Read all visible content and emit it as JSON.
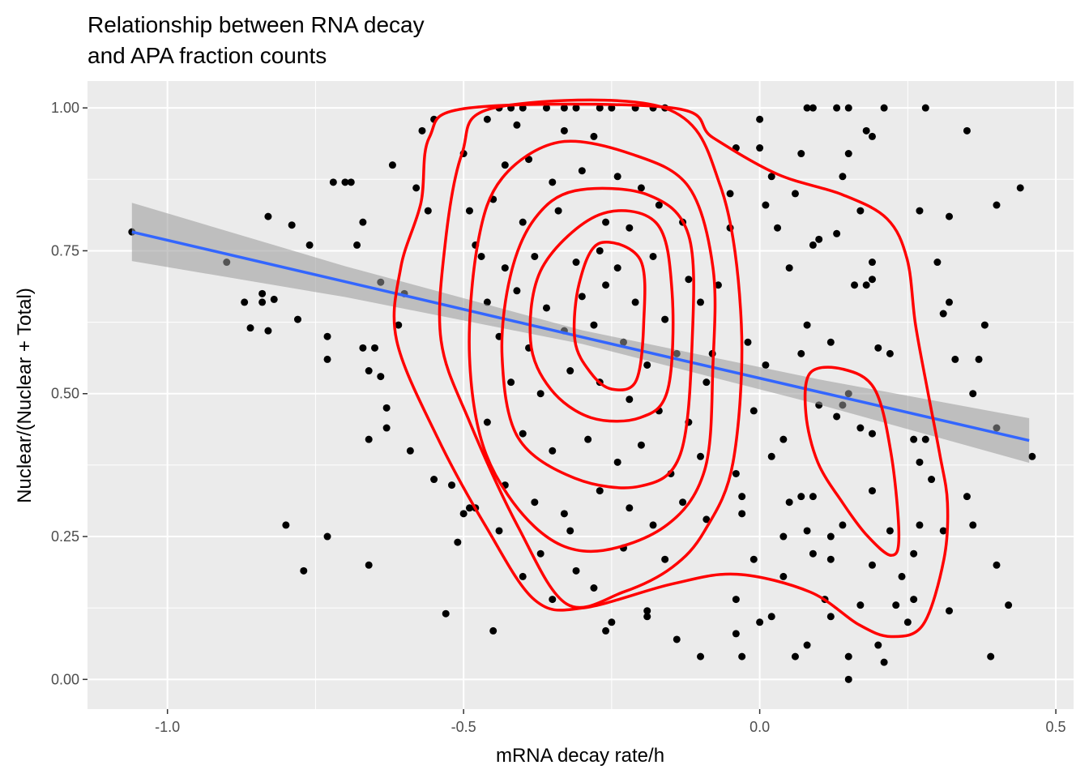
{
  "chart_data": {
    "type": "scatter",
    "title": [
      "Relationship between RNA decay",
      "and APA fraction counts"
    ],
    "x_label": "mRNA decay rate/h",
    "y_label": "Nuclear/(Nuclear + Total)",
    "xlim": [
      -1.135,
      0.53
    ],
    "ylim": [
      -0.052,
      1.047
    ],
    "xticks": [
      {
        "value": -1.0,
        "label": "-1.0"
      },
      {
        "value": -0.5,
        "label": "-0.5"
      },
      {
        "value": 0.0,
        "label": "0.0"
      },
      {
        "value": 0.5,
        "label": "0.5"
      }
    ],
    "yticks": [
      {
        "value": 0.0,
        "label": "0.00"
      },
      {
        "value": 0.25,
        "label": "0.25"
      },
      {
        "value": 0.5,
        "label": "0.50"
      },
      {
        "value": 0.75,
        "label": "0.75"
      },
      {
        "value": 1.0,
        "label": "1.00"
      }
    ],
    "x_minor_grid": [
      -0.75,
      -0.25,
      0.25
    ],
    "y_minor_grid": [
      0.125,
      0.375,
      0.625,
      0.875
    ],
    "grid": true,
    "point_color": "#000000",
    "series": [
      {
        "x": [
          -1.06,
          -0.9,
          -0.87,
          -0.86,
          -0.83,
          -0.83,
          -0.84,
          -0.84,
          -0.82,
          -0.79,
          -0.78,
          -0.76,
          -0.72,
          -0.7,
          -0.73,
          -0.73,
          -0.68,
          -0.67,
          -0.67,
          -0.66,
          -0.69,
          -0.62,
          -0.6,
          -0.64,
          -0.66,
          -0.64,
          -0.63,
          -0.65,
          -0.61,
          -0.63,
          -0.66,
          -0.73,
          -0.8,
          -0.77,
          -0.59,
          -0.58,
          -0.56,
          -0.55,
          -0.57,
          -0.55,
          -0.53,
          -0.52,
          -0.51,
          -0.45,
          -0.5,
          -0.48,
          -0.47,
          -0.49,
          -0.5,
          -0.49,
          -0.46,
          -0.42,
          -0.44,
          -0.4,
          -0.36,
          -0.33,
          -0.31,
          -0.27,
          -0.25,
          -0.21,
          -0.18,
          -0.16,
          -0.41,
          -0.33,
          -0.28,
          -0.43,
          -0.39,
          -0.35,
          -0.3,
          -0.24,
          -0.2,
          -0.17,
          -0.45,
          -0.4,
          -0.34,
          -0.26,
          -0.22,
          -0.13,
          -0.48,
          -0.43,
          -0.38,
          -0.31,
          -0.27,
          -0.24,
          -0.18,
          -0.12,
          -0.46,
          -0.41,
          -0.36,
          -0.3,
          -0.26,
          -0.21,
          -0.16,
          -0.1,
          -0.44,
          -0.39,
          -0.33,
          -0.28,
          -0.23,
          -0.19,
          -0.14,
          -0.09,
          -0.42,
          -0.37,
          -0.32,
          -0.27,
          -0.22,
          -0.17,
          -0.12,
          -0.46,
          -0.4,
          -0.35,
          -0.29,
          -0.24,
          -0.2,
          -0.15,
          -0.1,
          -0.43,
          -0.38,
          -0.33,
          -0.27,
          -0.22,
          -0.18,
          -0.13,
          -0.37,
          -0.31,
          -0.28,
          -0.23,
          -0.16,
          -0.35,
          -0.4,
          -0.44,
          0.0,
          0.08,
          0.09,
          0.13,
          0.15,
          0.21,
          0.28,
          0.18,
          0.19,
          0.35,
          0.0,
          0.07,
          0.15,
          0.14,
          0.02,
          0.06,
          0.17,
          0.27,
          0.32,
          0.4,
          0.44,
          0.09,
          0.1,
          0.05,
          0.13,
          0.19,
          0.3,
          0.19,
          0.18,
          0.16,
          0.08,
          0.07,
          0.12,
          0.2,
          0.22,
          0.31,
          0.32,
          0.38,
          0.33,
          0.37,
          0.4,
          0.46,
          0.36,
          0.13,
          0.17,
          0.19,
          0.26,
          0.28,
          0.02,
          0.04,
          0.1,
          0.15,
          0.14,
          0.27,
          0.29,
          0.19,
          0.05,
          0.07,
          0.09,
          0.04,
          0.08,
          0.14,
          0.22,
          0.27,
          0.31,
          0.35,
          0.36,
          0.12,
          0.09,
          0.12,
          0.19,
          0.26,
          0.24,
          0.26,
          0.25,
          0.23,
          0.32,
          0.42,
          0.11,
          0.17,
          0.12,
          0.02,
          0.0,
          0.06,
          0.08,
          0.15,
          0.2,
          0.21,
          0.15,
          0.39,
          0.4,
          0.04,
          -0.04,
          -0.04,
          -0.14,
          -0.03,
          -0.1,
          -0.01,
          -0.03,
          -0.04,
          -0.03,
          -0.01,
          0.01,
          -0.02,
          -0.08,
          -0.07,
          -0.05,
          -0.05,
          0.01,
          0.03,
          -0.04,
          -0.26,
          -0.25,
          -0.19,
          -0.19,
          -0.32,
          -0.09
        ],
        "values": [
          0.783,
          0.73,
          0.66,
          0.615,
          0.81,
          0.61,
          0.66,
          0.675,
          0.665,
          0.795,
          0.63,
          0.76,
          0.87,
          0.87,
          0.6,
          0.56,
          0.76,
          0.8,
          0.58,
          0.42,
          0.87,
          0.9,
          0.675,
          0.695,
          0.54,
          0.53,
          0.44,
          0.58,
          0.62,
          0.475,
          0.2,
          0.25,
          0.27,
          0.19,
          0.4,
          0.86,
          0.82,
          0.98,
          0.96,
          0.35,
          0.115,
          0.34,
          0.24,
          0.085,
          0.29,
          0.3,
          0.74,
          0.82,
          0.92,
          0.3,
          0.98,
          1.0,
          1.0,
          1.0,
          1.0,
          1.0,
          1.0,
          1.0,
          1.0,
          1.0,
          1.0,
          1.0,
          0.97,
          0.96,
          0.95,
          0.9,
          0.91,
          0.87,
          0.89,
          0.88,
          0.86,
          0.83,
          0.84,
          0.8,
          0.82,
          0.8,
          0.79,
          0.8,
          0.76,
          0.72,
          0.74,
          0.73,
          0.75,
          0.72,
          0.74,
          0.7,
          0.66,
          0.68,
          0.65,
          0.67,
          0.69,
          0.66,
          0.63,
          0.66,
          0.6,
          0.58,
          0.61,
          0.62,
          0.59,
          0.55,
          0.57,
          0.52,
          0.52,
          0.5,
          0.54,
          0.52,
          0.49,
          0.47,
          0.45,
          0.45,
          0.43,
          0.4,
          0.42,
          0.38,
          0.41,
          0.36,
          0.39,
          0.34,
          0.31,
          0.29,
          0.33,
          0.3,
          0.27,
          0.31,
          0.22,
          0.19,
          0.16,
          0.23,
          0.21,
          0.14,
          0.18,
          0.26,
          0.98,
          1.0,
          1.0,
          1.0,
          1.0,
          1.0,
          1.0,
          0.96,
          0.95,
          0.96,
          0.93,
          0.92,
          0.92,
          0.88,
          0.88,
          0.85,
          0.82,
          0.82,
          0.81,
          0.83,
          0.86,
          0.76,
          0.77,
          0.72,
          0.78,
          0.73,
          0.73,
          0.7,
          0.69,
          0.69,
          0.62,
          0.57,
          0.59,
          0.58,
          0.57,
          0.64,
          0.66,
          0.62,
          0.56,
          0.56,
          0.44,
          0.39,
          0.5,
          0.46,
          0.44,
          0.43,
          0.42,
          0.42,
          0.39,
          0.42,
          0.48,
          0.5,
          0.48,
          0.38,
          0.35,
          0.33,
          0.31,
          0.32,
          0.32,
          0.25,
          0.26,
          0.27,
          0.26,
          0.27,
          0.26,
          0.32,
          0.27,
          0.25,
          0.22,
          0.21,
          0.2,
          0.22,
          0.18,
          0.14,
          0.1,
          0.13,
          0.12,
          0.13,
          0.14,
          0.13,
          0.11,
          0.11,
          0.1,
          0.04,
          0.06,
          0.04,
          0.06,
          0.03,
          0.0,
          0.04,
          0.2,
          0.18,
          0.08,
          0.14,
          0.07,
          0.04,
          0.04,
          0.21,
          0.29,
          0.36,
          0.32,
          0.47,
          0.55,
          0.59,
          0.57,
          0.69,
          0.85,
          0.79,
          0.83,
          0.79,
          0.93,
          0.085,
          0.1,
          0.12,
          0.11,
          0.26,
          0.28
        ]
      }
    ],
    "fit": {
      "color": "#3366ff",
      "band_color": "#999999",
      "x": [
        -1.06,
        -0.7,
        -0.3,
        0.1,
        0.455
      ],
      "values": [
        0.783,
        0.696,
        0.599,
        0.503,
        0.418
      ],
      "lower": [
        0.732,
        0.669,
        0.587,
        0.481,
        0.379
      ],
      "upper": [
        0.834,
        0.723,
        0.611,
        0.525,
        0.457
      ]
    },
    "contour_color": "#ff0000",
    "contours": [
      {
        "x": [
          -0.271,
          -0.202,
          -0.196,
          -0.209,
          -0.25,
          -0.285,
          -0.312,
          -0.305
        ],
        "values": [
          0.763,
          0.735,
          0.621,
          0.522,
          0.508,
          0.536,
          0.593,
          0.692
        ]
      },
      {
        "x": [
          -0.271,
          -0.175,
          -0.148,
          -0.155,
          -0.202,
          -0.285,
          -0.353,
          -0.387,
          -0.367
        ],
        "values": [
          0.813,
          0.799,
          0.678,
          0.508,
          0.458,
          0.458,
          0.508,
          0.593,
          0.721
        ]
      },
      {
        "x": [
          -0.312,
          -0.189,
          -0.12,
          -0.114,
          -0.134,
          -0.202,
          -0.312,
          -0.408,
          -0.435,
          -0.421,
          -0.38
        ],
        "values": [
          0.855,
          0.848,
          0.777,
          0.593,
          0.394,
          0.338,
          0.352,
          0.423,
          0.565,
          0.706,
          0.806
        ]
      },
      {
        "x": [
          -0.339,
          -0.216,
          -0.12,
          -0.079,
          -0.079,
          -0.093,
          -0.161,
          -0.285,
          -0.38,
          -0.462,
          -0.49,
          -0.476,
          -0.435
        ],
        "values": [
          0.94,
          0.919,
          0.862,
          0.721,
          0.55,
          0.366,
          0.267,
          0.224,
          0.267,
          0.394,
          0.565,
          0.763,
          0.877
        ]
      },
      {
        "x": [
          -0.449,
          -0.503,
          -0.531,
          -0.538,
          -0.49,
          -0.408,
          -0.326,
          -0.23,
          -0.148,
          -0.093,
          -0.045,
          -0.031,
          -0.066,
          -0.161
        ],
        "values": [
          1.0,
          0.919,
          0.763,
          0.593,
          0.451,
          0.267,
          0.132,
          0.153,
          0.196,
          0.26,
          0.38,
          0.621,
          0.862,
          1.0
        ]
      },
      {
        "x": [
          -0.49,
          -0.558,
          -0.572,
          -0.606,
          -0.613,
          -0.544,
          -0.462,
          -0.38,
          -0.298,
          -0.148,
          -0.038,
          0.085,
          0.167,
          0.222,
          0.276,
          0.311,
          0.317,
          0.304,
          0.283,
          0.263,
          0.249,
          0.215,
          0.14,
          0.03,
          -0.079,
          -0.148
        ],
        "values": [
          1.0,
          0.948,
          0.834,
          0.721,
          0.593,
          0.423,
          0.267,
          0.139,
          0.125,
          0.167,
          0.184,
          0.153,
          0.096,
          0.075,
          0.096,
          0.21,
          0.309,
          0.394,
          0.508,
          0.621,
          0.735,
          0.806,
          0.848,
          0.884,
          0.948,
          1.0
        ]
      },
      {
        "x": [
          0.085,
          0.14,
          0.194,
          0.222,
          0.235,
          0.222,
          0.181,
          0.14,
          0.098,
          0.078
        ],
        "values": [
          0.536,
          0.543,
          0.508,
          0.394,
          0.252,
          0.217,
          0.252,
          0.309,
          0.38,
          0.465
        ]
      }
    ]
  }
}
